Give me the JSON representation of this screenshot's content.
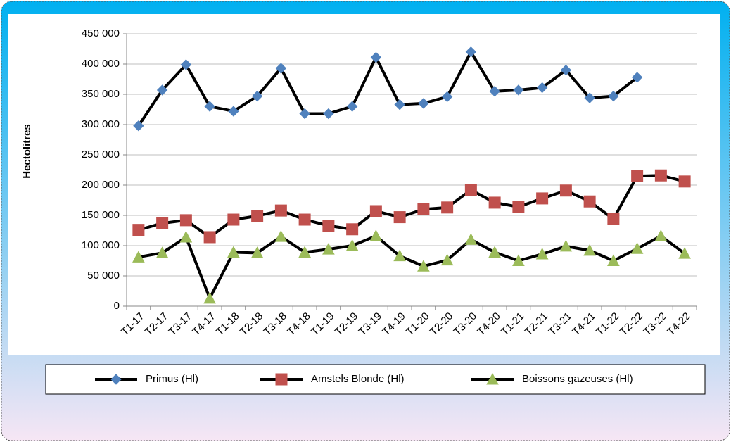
{
  "chart_data": {
    "type": "line",
    "ylabel": "Hectolitres",
    "categories": [
      "T1-17",
      "T2-17",
      "T3-17",
      "T4-17",
      "T1-18",
      "T2-18",
      "T3-18",
      "T4-18",
      "T1-19",
      "T2-19",
      "T3-19",
      "T4-19",
      "T1-20",
      "T2-20",
      "T3-20",
      "T4-20",
      "T1-21",
      "T2-21",
      "T3-21",
      "T4-21",
      "T1-22",
      "T2-22",
      "T3-22",
      "T4-22"
    ],
    "series": [
      {
        "name": "Primus (Hl)",
        "color": "#4f81bd",
        "marker": "diamond",
        "values": [
          298000,
          357000,
          399000,
          330000,
          322000,
          347000,
          393000,
          318000,
          318000,
          330000,
          411000,
          333000,
          335000,
          346000,
          420000,
          355000,
          357000,
          361000,
          390000,
          344000,
          347000,
          378000,
          null,
          null
        ]
      },
      {
        "name": "Amstels Blonde (Hl)",
        "color": "#c0504d",
        "marker": "square",
        "values": [
          126000,
          137000,
          142000,
          114000,
          143000,
          149000,
          158000,
          143000,
          133000,
          127000,
          157000,
          147000,
          160000,
          163000,
          192000,
          171000,
          164000,
          178000,
          191000,
          173000,
          144000,
          215000,
          216000,
          206000
        ]
      },
      {
        "name": "Boissons gazeuses (Hl)",
        "color": "#9bbb59",
        "marker": "triangle",
        "values": [
          81000,
          88000,
          114000,
          13000,
          89000,
          88000,
          115000,
          89000,
          94000,
          100000,
          116000,
          83000,
          66000,
          76000,
          110000,
          89000,
          75000,
          86000,
          99000,
          92000,
          75000,
          95000,
          116000,
          87000
        ]
      }
    ],
    "ylim": [
      0,
      450000
    ],
    "yticks": [
      0,
      {
        "value": 50000,
        "label": "50 000"
      },
      {
        "value": 100000,
        "label": "100 000"
      },
      {
        "value": 150000,
        "label": "150 000"
      },
      {
        "value": 200000,
        "label": "200 000"
      },
      {
        "value": 250000,
        "label": "250 000"
      },
      {
        "value": 300000,
        "label": "300 000"
      },
      {
        "value": 350000,
        "label": "350 000"
      },
      {
        "value": 400000,
        "label": "400 000"
      },
      {
        "value": 450000,
        "label": "450 000"
      }
    ],
    "grid": true,
    "legend": "bottom"
  }
}
